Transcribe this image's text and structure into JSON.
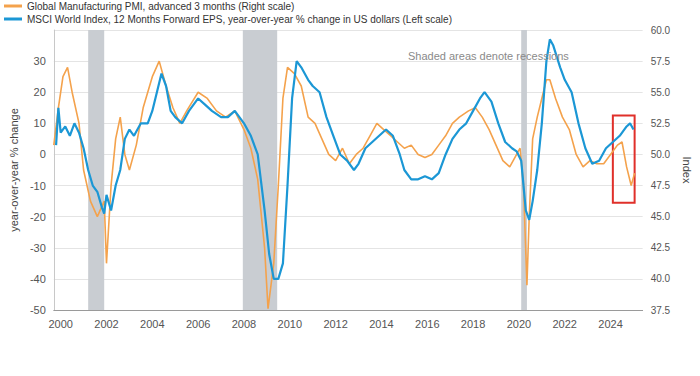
{
  "chart_data": {
    "type": "line",
    "y_label": "year-over-year % change",
    "y2_label": "Index",
    "annotation": "Shaded areas denote recessions",
    "xlim": [
      1999.7,
      2025.4
    ],
    "xticks": [
      2000,
      2002,
      2004,
      2006,
      2008,
      2010,
      2012,
      2014,
      2016,
      2018,
      2020,
      2022,
      2024
    ],
    "ylim": [
      -50,
      40
    ],
    "yticks": [
      -50,
      -40,
      -30,
      -20,
      -10,
      0,
      10,
      20,
      30
    ],
    "y2lim": [
      37.5,
      60
    ],
    "y2ticks": [
      37.5,
      {
        "value": 40,
        "label": "40.0"
      },
      42.5,
      {
        "value": 45,
        "label": "45.0"
      },
      47.5,
      {
        "value": 50,
        "label": "50.0"
      },
      52.5,
      {
        "value": 55,
        "label": "55.0"
      },
      57.5,
      {
        "value": 60,
        "label": "60.0"
      }
    ],
    "grid": true,
    "legend": "top-left",
    "recessions": [
      [
        2001.2,
        2001.9
      ],
      [
        2007.95,
        2009.45
      ],
      [
        2020.1,
        2020.35
      ]
    ],
    "highlight": {
      "x": [
        2024.1,
        2025.05
      ],
      "y": [
        -15.5,
        12.5
      ],
      "color": "#e0302a"
    },
    "series": [
      {
        "name": "Global Manufacturing PMI, advanced 3 months (Right scale)",
        "color": "#f4a24c",
        "axis": "y2",
        "x": [
          1999.7,
          1999.9,
          2000.1,
          2000.3,
          2000.5,
          2000.8,
          2001.0,
          2001.3,
          2001.6,
          2001.9,
          2002.0,
          2002.2,
          2002.4,
          2002.6,
          2002.8,
          2003.0,
          2003.3,
          2003.6,
          2004.0,
          2004.3,
          2004.6,
          2004.9,
          2005.2,
          2005.5,
          2006.0,
          2006.4,
          2006.8,
          2007.2,
          2007.6,
          2008.0,
          2008.3,
          2008.6,
          2008.9,
          2009.05,
          2009.3,
          2009.5,
          2009.7,
          2009.9,
          2010.2,
          2010.5,
          2010.8,
          2011.1,
          2011.4,
          2011.7,
          2012.0,
          2012.3,
          2012.6,
          2012.9,
          2013.2,
          2013.5,
          2013.8,
          2014.1,
          2014.4,
          2014.7,
          2015.0,
          2015.3,
          2015.6,
          2015.9,
          2016.2,
          2016.5,
          2016.8,
          2017.1,
          2017.4,
          2017.8,
          2018.1,
          2018.4,
          2018.7,
          2019.0,
          2019.3,
          2019.6,
          2019.9,
          2020.05,
          2020.2,
          2020.35,
          2020.45,
          2020.6,
          2020.8,
          2021.0,
          2021.2,
          2021.35,
          2021.6,
          2021.9,
          2022.2,
          2022.5,
          2022.8,
          2023.1,
          2023.4,
          2023.7,
          2024.0,
          2024.3,
          2024.5,
          2024.7,
          2024.9,
          2025.05
        ],
        "values": [
          50.75,
          53.75,
          56.25,
          57,
          55,
          52.5,
          48.75,
          46.25,
          45,
          46.25,
          41.25,
          47.5,
          51.25,
          53,
          50,
          48.75,
          50.75,
          53.75,
          56.25,
          57.5,
          55.5,
          53.75,
          52.5,
          53.5,
          55,
          54.5,
          53.5,
          53,
          53.5,
          52,
          50.5,
          48,
          42.5,
          37.6,
          41.25,
          47.5,
          54.5,
          57,
          56.5,
          55.5,
          53,
          52.5,
          51.25,
          50,
          49.5,
          50.5,
          49.25,
          50,
          50.5,
          51.5,
          52.5,
          52,
          51.5,
          51,
          50.5,
          50.75,
          50,
          49.75,
          50,
          50.75,
          51.5,
          52.5,
          53,
          53.5,
          53.75,
          53,
          52,
          50.75,
          49.5,
          49,
          50,
          50.5,
          47.5,
          39.5,
          45,
          51.25,
          53,
          54.5,
          56,
          56,
          54.5,
          53,
          52,
          50,
          49,
          49.5,
          49.25,
          49.25,
          50,
          50.75,
          51,
          49,
          47.5,
          48.5
        ]
      },
      {
        "name": "MSCI World Index, 12 Months Forward EPS, year-over-year % change in US dollars (Left scale)",
        "color": "#1b97d5",
        "axis": "y",
        "x": [
          1999.8,
          1999.9,
          2000.0,
          2000.2,
          2000.4,
          2000.6,
          2000.8,
          2001.0,
          2001.2,
          2001.4,
          2001.6,
          2001.8,
          2001.9,
          2002.0,
          2002.2,
          2002.4,
          2002.6,
          2002.8,
          2003.0,
          2003.2,
          2003.5,
          2003.8,
          2004.0,
          2004.2,
          2004.4,
          2004.6,
          2004.8,
          2005.0,
          2005.3,
          2005.6,
          2006.0,
          2006.3,
          2006.6,
          2007.0,
          2007.3,
          2007.6,
          2008.0,
          2008.3,
          2008.6,
          2008.9,
          2009.1,
          2009.3,
          2009.5,
          2009.7,
          2009.9,
          2010.1,
          2010.3,
          2010.5,
          2010.8,
          2011.0,
          2011.3,
          2011.6,
          2011.9,
          2012.2,
          2012.5,
          2012.8,
          2013.0,
          2013.3,
          2013.6,
          2013.9,
          2014.2,
          2014.5,
          2014.8,
          2015.0,
          2015.3,
          2015.6,
          2015.9,
          2016.2,
          2016.5,
          2016.8,
          2017.1,
          2017.4,
          2017.7,
          2018.0,
          2018.3,
          2018.5,
          2018.8,
          2019.1,
          2019.4,
          2019.7,
          2019.9,
          2020.1,
          2020.3,
          2020.45,
          2020.6,
          2020.8,
          2021.0,
          2021.2,
          2021.35,
          2021.5,
          2021.8,
          2022.0,
          2022.3,
          2022.6,
          2022.9,
          2023.2,
          2023.5,
          2023.8,
          2024.1,
          2024.4,
          2024.7,
          2024.85,
          2025.0
        ],
        "values": [
          3,
          15,
          7,
          9,
          6,
          10,
          7,
          2,
          -5,
          -10,
          -12,
          -17,
          -19,
          -13,
          -18,
          -10,
          -5,
          5,
          8,
          6,
          10,
          10,
          14,
          20,
          26,
          22,
          14,
          12,
          10,
          14,
          18,
          16,
          14,
          12,
          12,
          14,
          10,
          6,
          0,
          -18,
          -32,
          -40,
          -40,
          -35,
          -10,
          18,
          30,
          28,
          24,
          22,
          20,
          12,
          6,
          0,
          -2,
          -5,
          -3,
          2,
          4,
          6,
          8,
          6,
          0,
          -5,
          -8,
          -8,
          -7,
          -8,
          -6,
          0,
          5,
          8,
          10,
          14,
          18,
          20,
          17,
          10,
          4,
          2,
          1,
          -2,
          -18,
          -21,
          -15,
          -5,
          10,
          30,
          37,
          35,
          28,
          24,
          20,
          10,
          2,
          -3,
          -2,
          2,
          4,
          6,
          9,
          10,
          8
        ]
      }
    ]
  }
}
